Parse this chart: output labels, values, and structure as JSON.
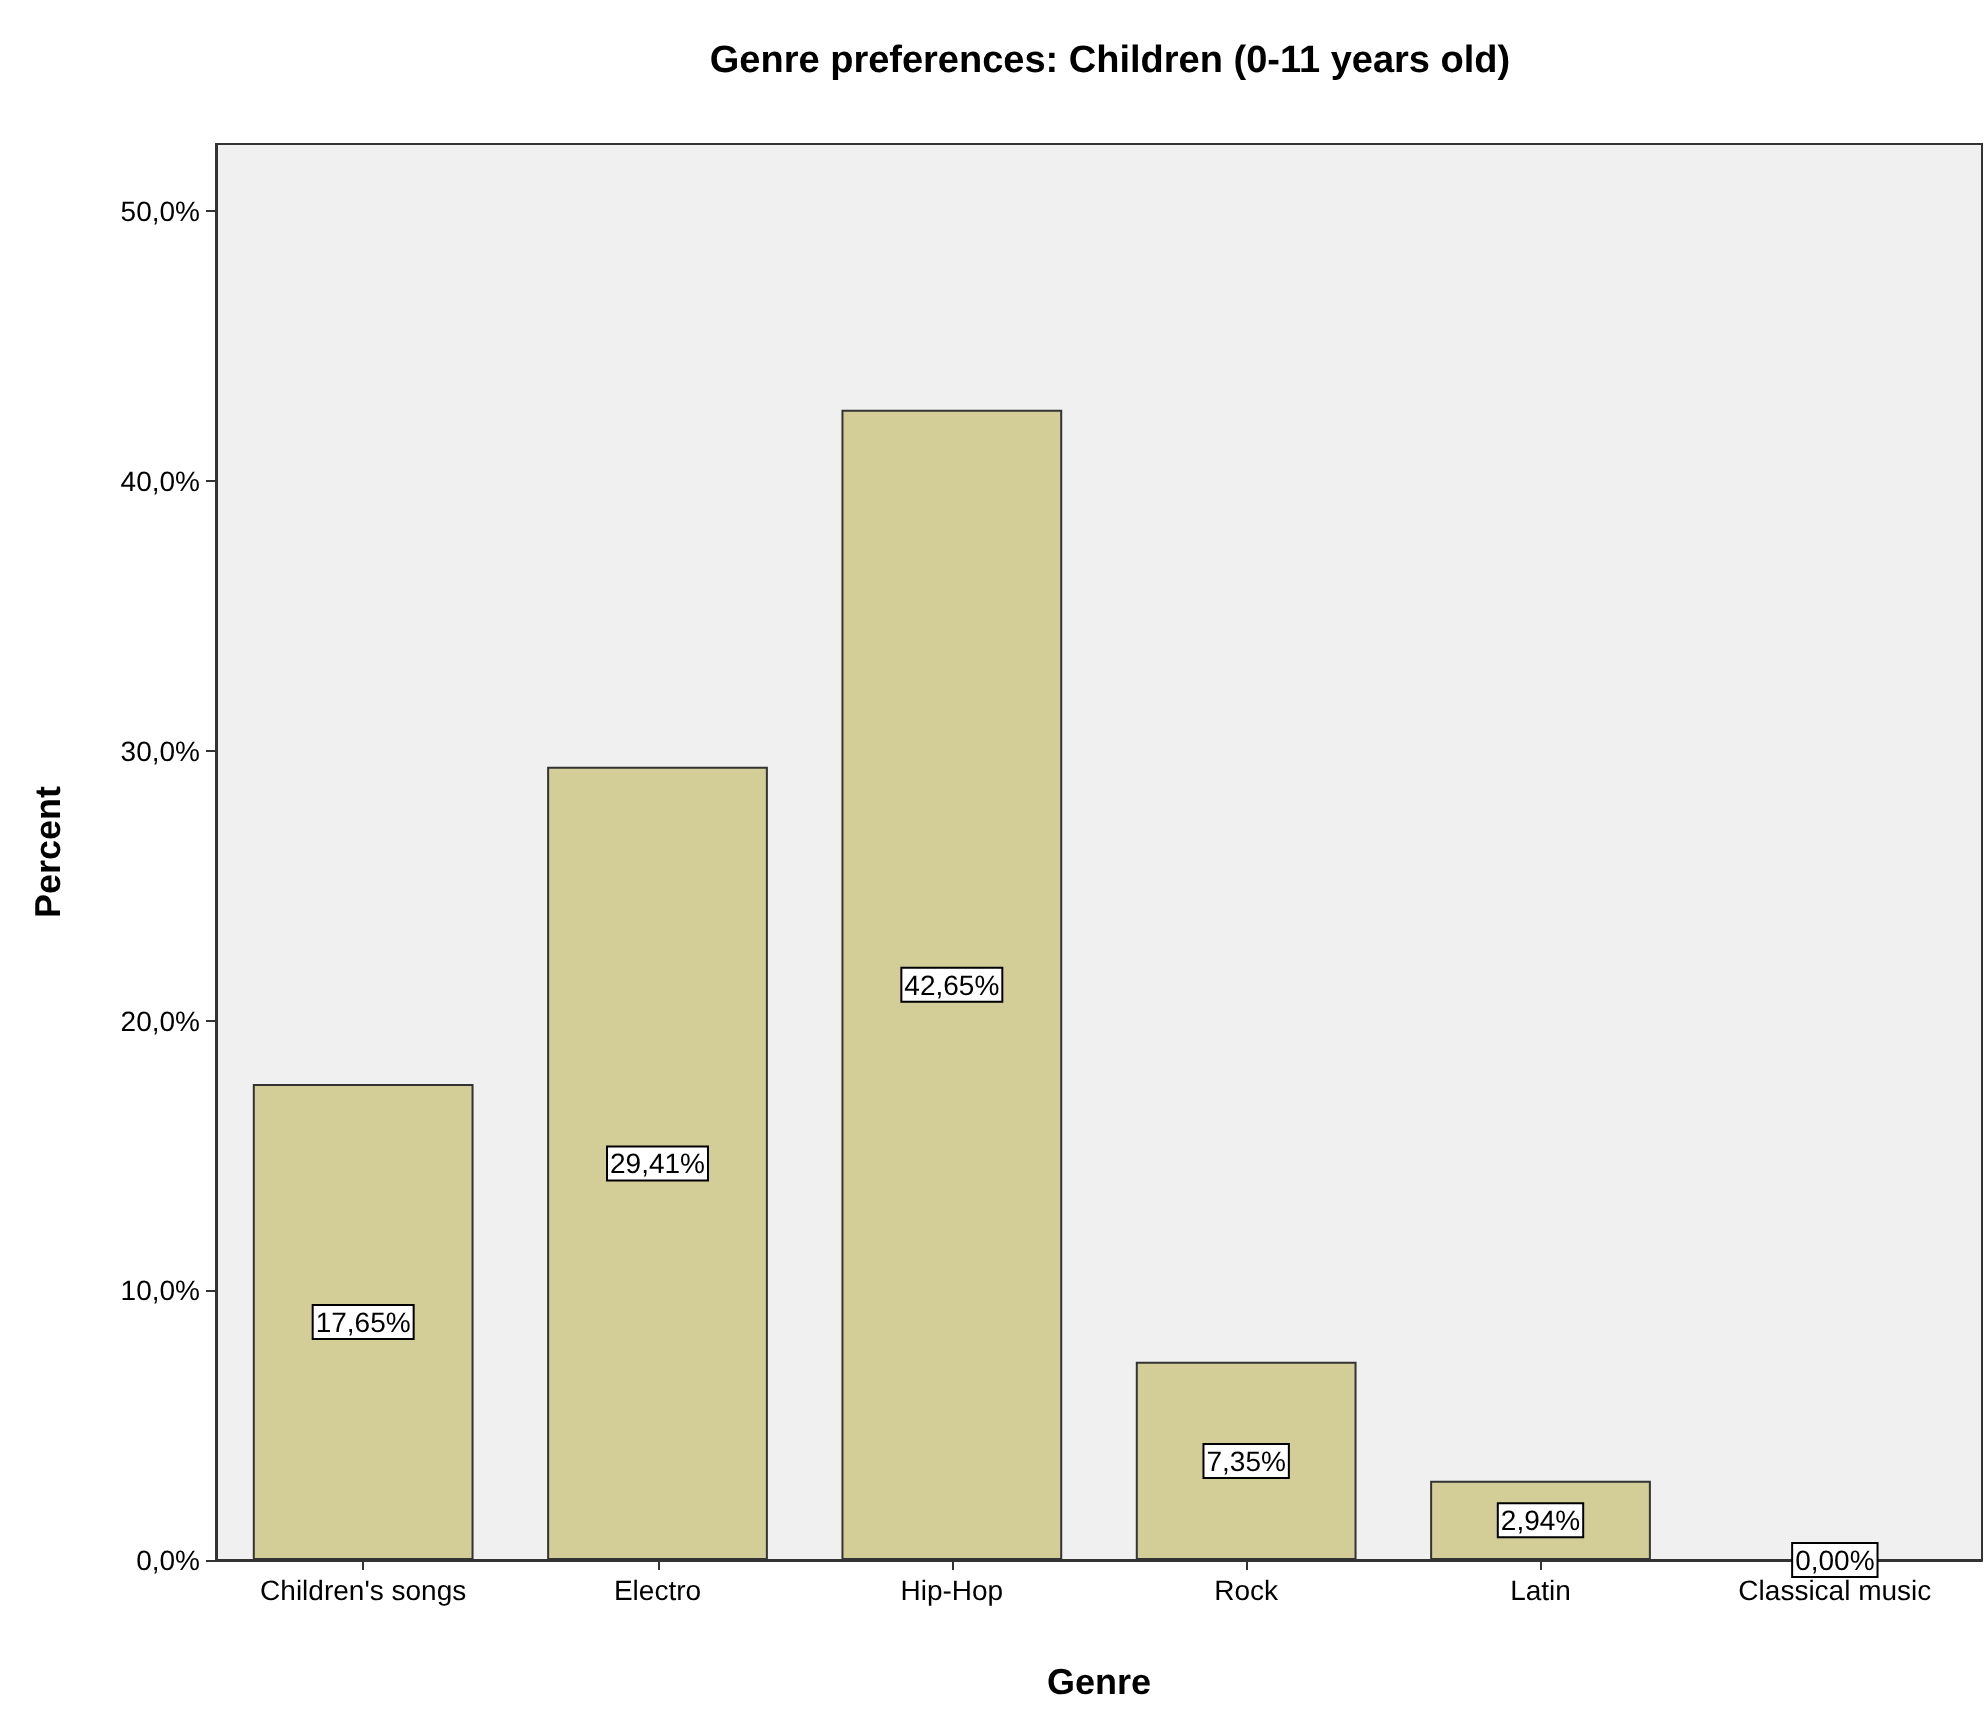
{
  "chart_data": {
    "type": "bar",
    "title": "Genre preferences: Children (0-11 years old)",
    "xlabel": "Genre",
    "ylabel": "Percent",
    "categories": [
      "Children's songs",
      "Electro",
      "Hip-Hop",
      "Rock",
      "Latin",
      "Classical music"
    ],
    "values": [
      17.65,
      29.41,
      42.65,
      7.35,
      2.94,
      0
    ],
    "value_labels": [
      "17,65%",
      "29,41%",
      "42,65%",
      "7,35%",
      "2,94%",
      "0,00%"
    ],
    "color": "#d3ce97",
    "ylim": [
      0,
      52.5
    ],
    "yticks": [
      {
        "value": 0,
        "label": "0,0%"
      },
      {
        "value": 10,
        "label": "10,0%"
      },
      {
        "value": 20,
        "label": "20,0%"
      },
      {
        "value": 30,
        "label": "30,0%"
      },
      {
        "value": 40,
        "label": "40,0%"
      },
      {
        "value": 50,
        "label": "50,0%"
      }
    ],
    "grid": false
  }
}
